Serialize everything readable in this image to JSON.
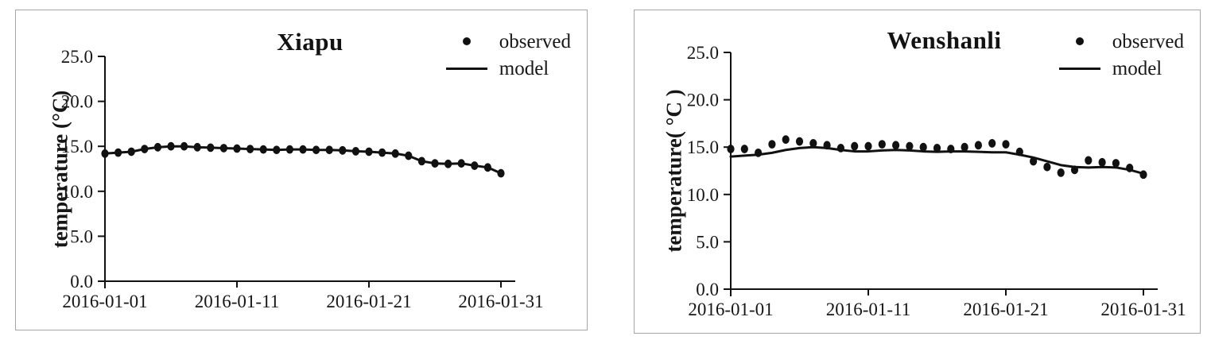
{
  "figure": {
    "background": "#ffffff",
    "ink_color": "#111111",
    "border_color": "#a6a6a6"
  },
  "chart_data": [
    {
      "type": "line",
      "title": "Xiapu",
      "xlabel": "",
      "ylabel": "temperature (°C)",
      "ylim": [
        0,
        25
      ],
      "grid": false,
      "legend_position": "top-right",
      "y_ticks": [
        0,
        5,
        10,
        15,
        20,
        25
      ],
      "y_tick_labels": [
        "0.0",
        "5.0",
        "10.0",
        "15.0",
        "20.0",
        "25.0"
      ],
      "x": [
        "2016-01-01",
        "2016-01-02",
        "2016-01-03",
        "2016-01-04",
        "2016-01-05",
        "2016-01-06",
        "2016-01-07",
        "2016-01-08",
        "2016-01-09",
        "2016-01-10",
        "2016-01-11",
        "2016-01-12",
        "2016-01-13",
        "2016-01-14",
        "2016-01-15",
        "2016-01-16",
        "2016-01-17",
        "2016-01-18",
        "2016-01-19",
        "2016-01-20",
        "2016-01-21",
        "2016-01-22",
        "2016-01-23",
        "2016-01-24",
        "2016-01-25",
        "2016-01-26",
        "2016-01-27",
        "2016-01-28",
        "2016-01-29",
        "2016-01-30",
        "2016-01-31"
      ],
      "x_tick_indices": [
        0,
        10,
        20,
        30
      ],
      "x_tick_labels": [
        "2016-01-01",
        "2016-01-11",
        "2016-01-21",
        "2016-01-31"
      ],
      "series": [
        {
          "name": "observed",
          "style": "scatter",
          "marker": "dot",
          "color": "#111111",
          "values": [
            14.2,
            14.3,
            14.4,
            14.7,
            14.9,
            15.0,
            15.0,
            14.9,
            14.85,
            14.8,
            14.75,
            14.7,
            14.65,
            14.6,
            14.65,
            14.65,
            14.6,
            14.6,
            14.55,
            14.45,
            14.4,
            14.3,
            14.2,
            13.95,
            13.35,
            13.1,
            13.05,
            13.1,
            12.85,
            12.65,
            12.0
          ]
        },
        {
          "name": "model",
          "style": "line",
          "color": "#111111",
          "values": [
            14.2,
            14.3,
            14.4,
            14.7,
            14.9,
            15.0,
            15.0,
            14.9,
            14.85,
            14.8,
            14.75,
            14.7,
            14.65,
            14.6,
            14.65,
            14.65,
            14.6,
            14.6,
            14.55,
            14.45,
            14.4,
            14.3,
            14.2,
            13.95,
            13.35,
            13.1,
            13.05,
            13.1,
            12.85,
            12.65,
            12.0
          ]
        }
      ]
    },
    {
      "type": "line",
      "title": "Wenshanli",
      "xlabel": "",
      "ylabel": "temperature( °C )",
      "ylim": [
        0,
        25
      ],
      "grid": false,
      "legend_position": "top-right",
      "y_ticks": [
        0,
        5,
        10,
        15,
        20,
        25
      ],
      "y_tick_labels": [
        "0.0",
        "5.0",
        "10.0",
        "15.0",
        "20.0",
        "25.0"
      ],
      "x": [
        "2016-01-01",
        "2016-01-02",
        "2016-01-03",
        "2016-01-04",
        "2016-01-05",
        "2016-01-06",
        "2016-01-07",
        "2016-01-08",
        "2016-01-09",
        "2016-01-10",
        "2016-01-11",
        "2016-01-12",
        "2016-01-13",
        "2016-01-14",
        "2016-01-15",
        "2016-01-16",
        "2016-01-17",
        "2016-01-18",
        "2016-01-19",
        "2016-01-20",
        "2016-01-21",
        "2016-01-22",
        "2016-01-23",
        "2016-01-24",
        "2016-01-25",
        "2016-01-26",
        "2016-01-27",
        "2016-01-28",
        "2016-01-29",
        "2016-01-30",
        "2016-01-31"
      ],
      "x_tick_indices": [
        0,
        10,
        20,
        30
      ],
      "x_tick_labels": [
        "2016-01-01",
        "2016-01-11",
        "2016-01-21",
        "2016-01-31"
      ],
      "series": [
        {
          "name": "observed",
          "style": "scatter",
          "marker": "dot",
          "color": "#111111",
          "values": [
            14.8,
            14.8,
            14.4,
            15.3,
            15.8,
            15.6,
            15.4,
            15.2,
            14.9,
            15.1,
            15.1,
            15.3,
            15.2,
            15.1,
            15.0,
            14.9,
            14.8,
            15.0,
            15.2,
            15.4,
            15.3,
            14.5,
            13.5,
            12.9,
            12.3,
            12.6,
            13.6,
            13.4,
            13.3,
            12.8,
            12.1
          ]
        },
        {
          "name": "model",
          "style": "line",
          "color": "#111111",
          "values": [
            14.0,
            14.1,
            14.2,
            14.4,
            14.7,
            14.9,
            15.0,
            14.9,
            14.7,
            14.55,
            14.55,
            14.65,
            14.7,
            14.65,
            14.55,
            14.5,
            14.55,
            14.55,
            14.5,
            14.45,
            14.45,
            14.2,
            13.9,
            13.5,
            13.1,
            12.9,
            12.85,
            12.9,
            12.85,
            12.6,
            12.2
          ]
        }
      ]
    }
  ]
}
